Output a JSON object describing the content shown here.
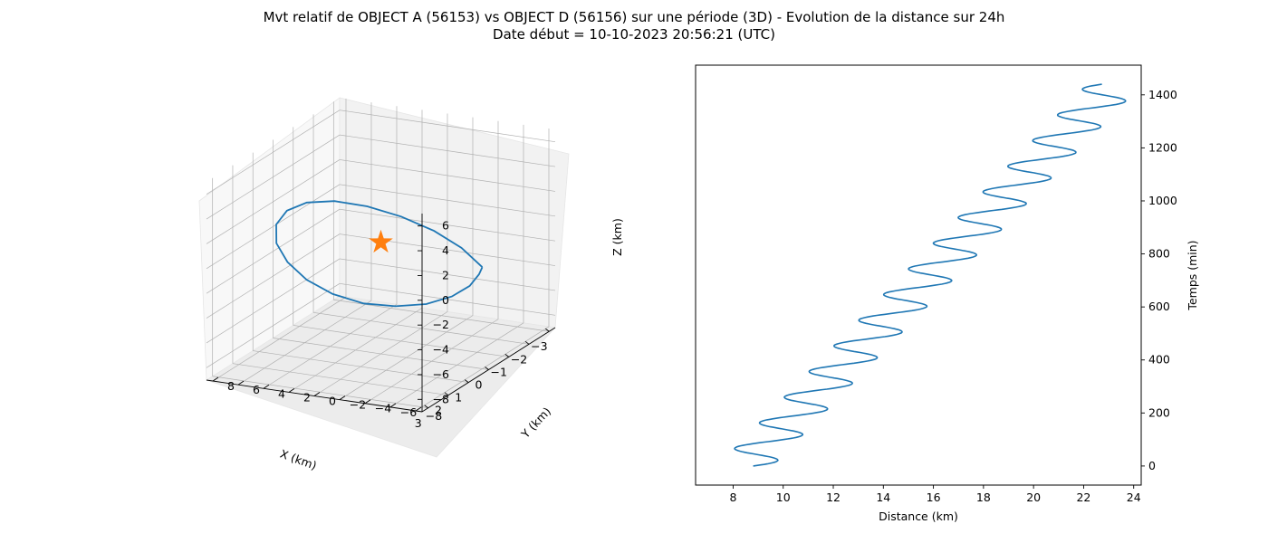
{
  "figure": {
    "title_line1": "Mvt relatif de OBJECT A (56153) vs OBJECT D (56156) sur une période (3D) - Evolution de la distance sur 24h",
    "title_line2": "Date début = 10-10-2023 20:56:21 (UTC)"
  },
  "colors": {
    "line": "#1f77b4",
    "marker": "#ff7f0e",
    "pane": "#f2f2f2",
    "grid": "#b0b0b0"
  },
  "chart_data": [
    {
      "type": "line",
      "projection": "3d",
      "xlabel": "X (km)",
      "ylabel": "Y (km)",
      "zlabel": "Z (km)",
      "x_ticks": [
        "−3",
        "−2",
        "−1",
        "0",
        "1",
        "2",
        "3"
      ],
      "y_ticks": [
        "−8",
        "−6",
        "−4",
        "−2",
        "0",
        "2",
        "4",
        "6",
        "8"
      ],
      "z_ticks": [
        "6",
        "4",
        "2",
        "0",
        "−2",
        "−4",
        "−6",
        "−8"
      ],
      "xlim": [
        -3.3,
        3.3
      ],
      "ylim": [
        -8.5,
        8.5
      ],
      "zlim": [
        -9,
        7
      ],
      "grid": true,
      "series": [
        {
          "x": [
            0.0,
            0.78,
            1.45,
            1.95,
            2.25,
            2.3,
            2.1,
            1.7,
            1.1,
            0.4,
            -0.4,
            -1.1,
            -1.7,
            -2.1,
            -2.3,
            -2.25,
            -1.95,
            -1.45,
            -0.78,
            0.0
          ],
          "y": [
            -8.0,
            -7.6,
            -6.5,
            -4.7,
            -2.5,
            0.0,
            2.5,
            4.7,
            6.5,
            7.6,
            8.0,
            7.6,
            6.5,
            4.7,
            2.5,
            0.0,
            -2.5,
            -4.7,
            -6.5,
            -8.0
          ],
          "z": [
            -0.8,
            1.5,
            3.4,
            4.8,
            5.6,
            5.7,
            5.0,
            3.6,
            1.6,
            -0.8,
            -3.2,
            -5.3,
            -6.9,
            -7.8,
            -7.9,
            -7.3,
            -6.0,
            -4.3,
            -2.4,
            -0.8
          ]
        }
      ],
      "marker": {
        "symbol": "star",
        "x": 0,
        "y": 0,
        "z": 0
      }
    },
    {
      "type": "line",
      "xlabel": "Distance (km)",
      "ylabel": "Temps (min)",
      "xlim": [
        6.5,
        24.3
      ],
      "ylim": [
        -72,
        1512
      ],
      "x_ticks": [
        8,
        10,
        12,
        14,
        16,
        18,
        20,
        22,
        24
      ],
      "y_ticks": [
        0,
        200,
        400,
        600,
        800,
        1000,
        1200,
        1400
      ],
      "y_axis_position": "right",
      "grid": false,
      "series": [
        {
          "start_distance": 8.8,
          "end_distance": 23.5,
          "trend_per_min": 0.01025,
          "oscillation_amplitude": 1.1,
          "oscillation_period_min": 96.8,
          "oscillation_phase_rad": 0.3,
          "t_range": [
            0,
            1440
          ]
        }
      ]
    }
  ]
}
